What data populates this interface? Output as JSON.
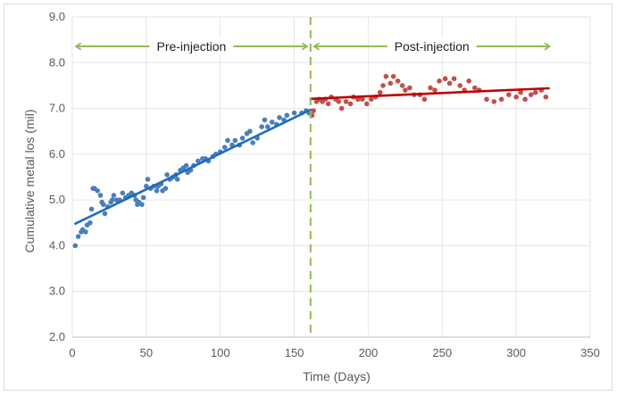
{
  "chart_data": {
    "type": "scatter",
    "title": "",
    "xlabel": "Time (Days)",
    "ylabel": "Cumulative metal los (mil)",
    "xlim": [
      0,
      350
    ],
    "ylim": [
      2.0,
      9.0
    ],
    "x_ticks": [
      0,
      50,
      100,
      150,
      200,
      250,
      300,
      350
    ],
    "x_tick_labels": [
      "0",
      "50",
      "100",
      "150",
      "200",
      "250",
      "300",
      "350"
    ],
    "y_ticks": [
      2.0,
      3.0,
      4.0,
      5.0,
      6.0,
      7.0,
      8.0,
      9.0
    ],
    "y_tick_labels": [
      "2.0",
      "3.0",
      "4.0",
      "5.0",
      "6.0",
      "7.0",
      "8.0",
      "9.0"
    ],
    "grid": true,
    "legend": "none",
    "colors": {
      "pre_points": "#4a7ebb",
      "pre_trend": "#1f6db5",
      "post_points": "#c0504d",
      "post_trend": "#c00000",
      "divider": "#8fbc52",
      "arrows": "#8fbc52",
      "grid": "#e6e6e6"
    },
    "divider_x": 161,
    "annotations": {
      "pre": "Pre-injection",
      "post": "Post-injection",
      "pre_span": [
        0,
        161
      ],
      "post_span": [
        161,
        325
      ]
    },
    "series": [
      {
        "points": [
          [
            2,
            4.0
          ],
          [
            4,
            4.2
          ],
          [
            6,
            4.3
          ],
          [
            7,
            4.35
          ],
          [
            9,
            4.3
          ],
          [
            10,
            4.45
          ],
          [
            12,
            4.5
          ],
          [
            13,
            4.8
          ],
          [
            14,
            5.25
          ],
          [
            15,
            5.25
          ],
          [
            17,
            5.2
          ],
          [
            19,
            5.1
          ],
          [
            20,
            4.95
          ],
          [
            21,
            4.9
          ],
          [
            22,
            4.7
          ],
          [
            24,
            4.85
          ],
          [
            26,
            4.95
          ],
          [
            27,
            5.0
          ],
          [
            28,
            5.1
          ],
          [
            30,
            5.0
          ],
          [
            32,
            5.0
          ],
          [
            34,
            5.15
          ],
          [
            36,
            5.05
          ],
          [
            38,
            5.1
          ],
          [
            40,
            5.15
          ],
          [
            42,
            5.1
          ],
          [
            43,
            5.0
          ],
          [
            44,
            4.9
          ],
          [
            45,
            4.95
          ],
          [
            47,
            4.9
          ],
          [
            48,
            5.05
          ],
          [
            50,
            5.3
          ],
          [
            51,
            5.45
          ],
          [
            53,
            5.25
          ],
          [
            55,
            5.3
          ],
          [
            57,
            5.2
          ],
          [
            58,
            5.3
          ],
          [
            60,
            5.35
          ],
          [
            61,
            5.2
          ],
          [
            63,
            5.25
          ],
          [
            64,
            5.55
          ],
          [
            66,
            5.45
          ],
          [
            68,
            5.5
          ],
          [
            70,
            5.55
          ],
          [
            71,
            5.45
          ],
          [
            73,
            5.65
          ],
          [
            75,
            5.7
          ],
          [
            77,
            5.75
          ],
          [
            78,
            5.6
          ],
          [
            80,
            5.65
          ],
          [
            82,
            5.75
          ],
          [
            85,
            5.85
          ],
          [
            88,
            5.9
          ],
          [
            90,
            5.9
          ],
          [
            92,
            5.85
          ],
          [
            95,
            5.95
          ],
          [
            97,
            6.0
          ],
          [
            100,
            6.05
          ],
          [
            103,
            6.15
          ],
          [
            105,
            6.3
          ],
          [
            108,
            6.2
          ],
          [
            110,
            6.3
          ],
          [
            113,
            6.2
          ],
          [
            115,
            6.35
          ],
          [
            118,
            6.45
          ],
          [
            120,
            6.5
          ],
          [
            122,
            6.25
          ],
          [
            125,
            6.35
          ],
          [
            128,
            6.6
          ],
          [
            130,
            6.75
          ],
          [
            132,
            6.6
          ],
          [
            135,
            6.7
          ],
          [
            138,
            6.65
          ],
          [
            140,
            6.8
          ],
          [
            143,
            6.75
          ],
          [
            145,
            6.85
          ],
          [
            150,
            6.9
          ],
          [
            155,
            6.9
          ],
          [
            158,
            6.95
          ],
          [
            160,
            6.9
          ]
        ],
        "trend": [
          [
            2,
            4.48
          ],
          [
            161,
            6.97
          ]
        ]
      },
      {
        "points": [
          [
            162,
            6.85
          ],
          [
            163,
            6.95
          ],
          [
            165,
            7.15
          ],
          [
            167,
            7.2
          ],
          [
            169,
            7.15
          ],
          [
            171,
            7.2
          ],
          [
            173,
            7.1
          ],
          [
            175,
            7.25
          ],
          [
            178,
            7.2
          ],
          [
            180,
            7.15
          ],
          [
            182,
            7.0
          ],
          [
            185,
            7.15
          ],
          [
            188,
            7.1
          ],
          [
            190,
            7.25
          ],
          [
            193,
            7.2
          ],
          [
            196,
            7.2
          ],
          [
            199,
            7.1
          ],
          [
            202,
            7.2
          ],
          [
            205,
            7.25
          ],
          [
            208,
            7.35
          ],
          [
            210,
            7.5
          ],
          [
            212,
            7.7
          ],
          [
            215,
            7.55
          ],
          [
            217,
            7.7
          ],
          [
            220,
            7.6
          ],
          [
            223,
            7.5
          ],
          [
            225,
            7.4
          ],
          [
            228,
            7.45
          ],
          [
            231,
            7.3
          ],
          [
            235,
            7.3
          ],
          [
            238,
            7.2
          ],
          [
            242,
            7.45
          ],
          [
            245,
            7.4
          ],
          [
            248,
            7.6
          ],
          [
            252,
            7.65
          ],
          [
            255,
            7.55
          ],
          [
            258,
            7.65
          ],
          [
            262,
            7.5
          ],
          [
            265,
            7.4
          ],
          [
            268,
            7.6
          ],
          [
            272,
            7.45
          ],
          [
            275,
            7.4
          ],
          [
            280,
            7.2
          ],
          [
            285,
            7.15
          ],
          [
            290,
            7.2
          ],
          [
            295,
            7.3
          ],
          [
            300,
            7.25
          ],
          [
            303,
            7.35
          ],
          [
            306,
            7.2
          ],
          [
            310,
            7.3
          ],
          [
            313,
            7.35
          ],
          [
            317,
            7.4
          ],
          [
            320,
            7.25
          ]
        ],
        "trend": [
          [
            161,
            7.21
          ],
          [
            322,
            7.44
          ]
        ]
      }
    ]
  }
}
